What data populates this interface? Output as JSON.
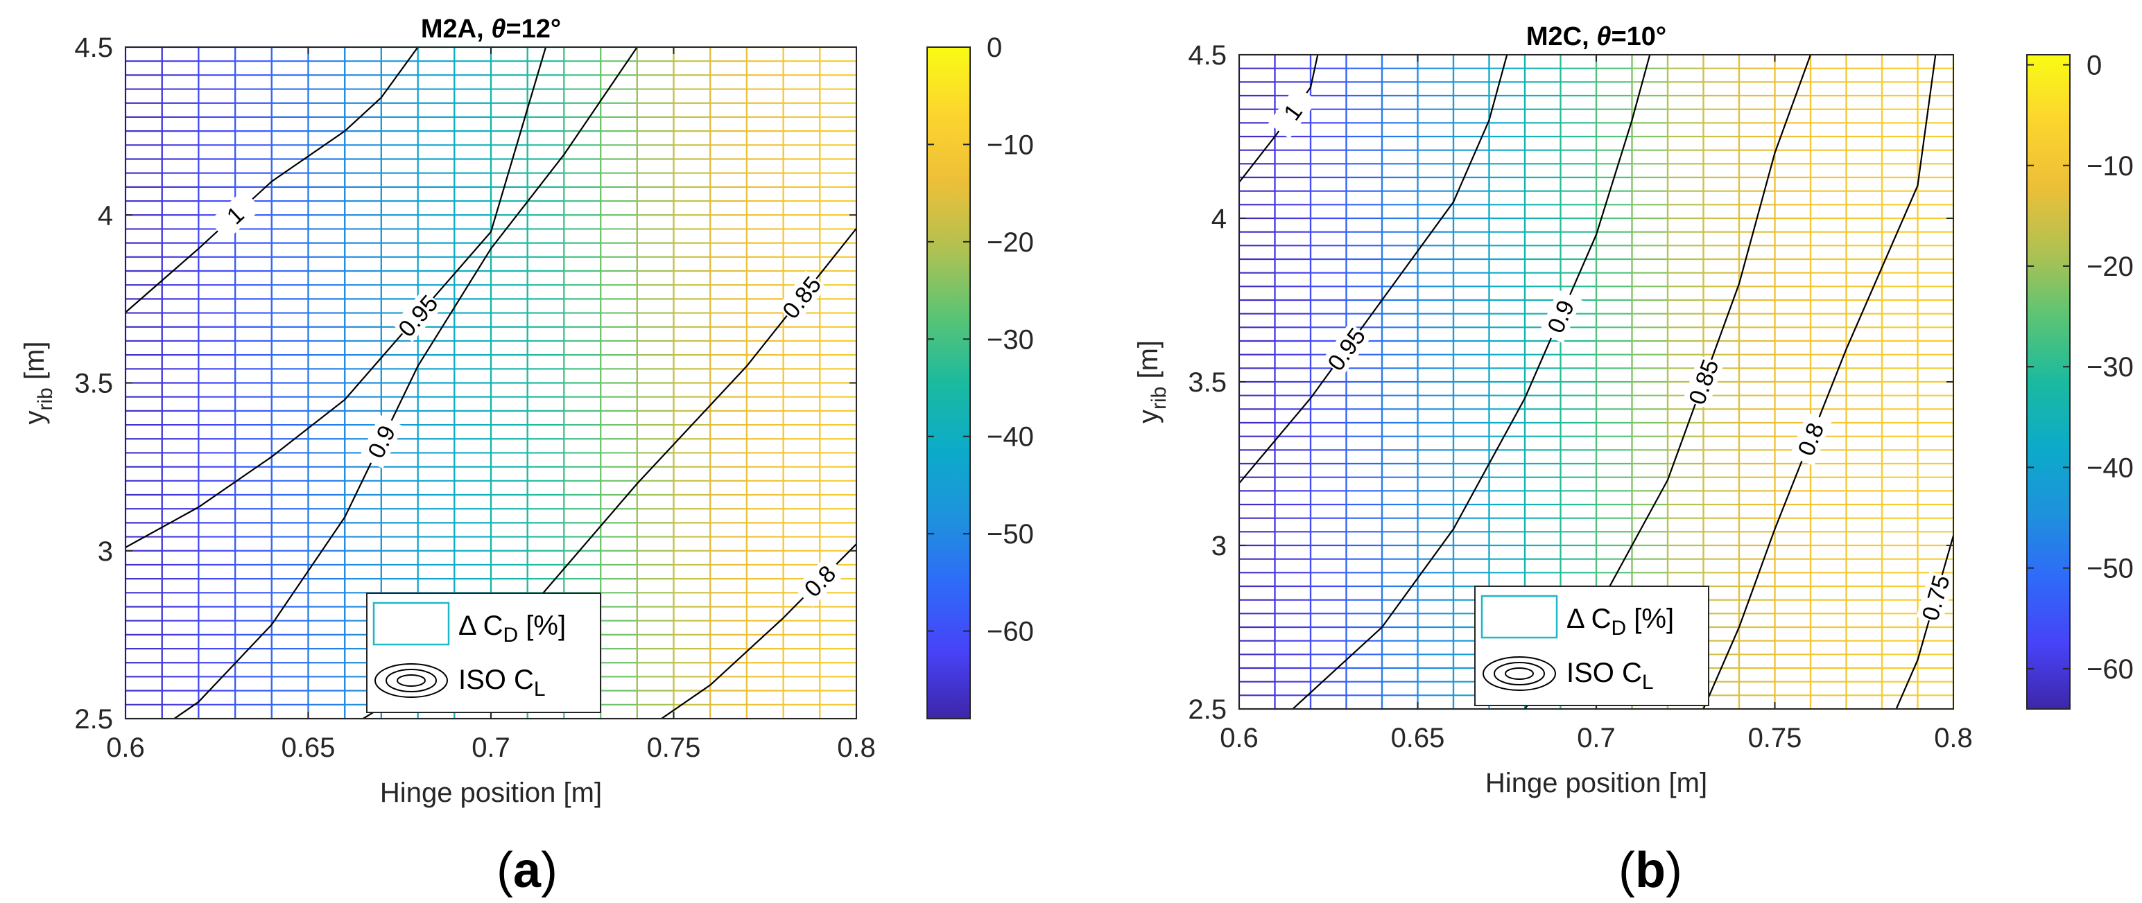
{
  "colormap": [
    "#3e26a8",
    "#4743f8",
    "#2f6af9",
    "#1e92dc",
    "#0cabc9",
    "#1bba9f",
    "#5bc474",
    "#b1c151",
    "#edbf38",
    "#fcd52e",
    "#f9fb15"
  ],
  "chart_data": [
    {
      "type": "heatmap",
      "panel_label": "(a)",
      "title": "M2A, θ=12°",
      "title_prefix": "M2A, ",
      "title_theta": "θ",
      "title_suffix": "=12°",
      "xlabel": "Hinge position [m]",
      "ylabel": "y",
      "ylabel_sub": "rib",
      "ylabel_unit": " [m]",
      "xlim": [
        0.6,
        0.8
      ],
      "ylim": [
        2.5,
        4.5
      ],
      "xticks": [
        "0.6",
        "0.65",
        "0.7",
        "0.75",
        "0.8"
      ],
      "yticks": [
        "2.5",
        "3",
        "3.5",
        "4",
        "4.5"
      ],
      "grid": false,
      "filled_series": {
        "name": "Δ C_D [%]",
        "x": [
          0.6,
          0.61,
          0.62,
          0.63,
          0.64,
          0.65,
          0.66,
          0.67,
          0.68,
          0.69,
          0.7,
          0.71,
          0.72,
          0.73,
          0.74,
          0.75,
          0.76,
          0.77,
          0.78,
          0.79,
          0.8
        ],
        "values": [
          -66,
          -64,
          -61,
          -58,
          -55,
          -52,
          -49,
          -46,
          -43,
          -40,
          -37,
          -34,
          -30,
          -26,
          -22,
          -18,
          -15,
          -13,
          -11,
          -10,
          -9
        ],
        "clim": [
          -69,
          0
        ],
        "colorbar_ticks": [
          "0",
          "-10",
          "-20",
          "-30",
          "-40",
          "-50",
          "-60"
        ]
      },
      "contour_series": {
        "name": "ISO C_L",
        "lines": [
          {
            "label": "1",
            "points": [
              [
                0.6,
                3.71
              ],
              [
                0.62,
                3.9
              ],
              [
                0.64,
                4.1
              ],
              [
                0.66,
                4.25
              ],
              [
                0.67,
                4.35
              ],
              [
                0.68,
                4.5
              ]
            ]
          },
          {
            "label": "0.95",
            "points": [
              [
                0.6,
                3.01
              ],
              [
                0.62,
                3.13
              ],
              [
                0.64,
                3.28
              ],
              [
                0.66,
                3.45
              ],
              [
                0.7,
                3.95
              ],
              [
                0.715,
                4.5
              ]
            ]
          },
          {
            "label": "0.9",
            "points": [
              [
                0.6,
                2.4
              ],
              [
                0.62,
                2.55
              ],
              [
                0.64,
                2.78
              ],
              [
                0.66,
                3.1
              ],
              [
                0.68,
                3.55
              ],
              [
                0.7,
                3.9
              ],
              [
                0.72,
                4.18
              ],
              [
                0.74,
                4.5
              ]
            ]
          },
          {
            "label": "0.85",
            "points": [
              [
                0.65,
                2.4
              ],
              [
                0.68,
                2.6
              ],
              [
                0.71,
                2.82
              ],
              [
                0.74,
                3.2
              ],
              [
                0.77,
                3.55
              ],
              [
                0.8,
                3.96
              ]
            ]
          },
          {
            "label": "0.8",
            "points": [
              [
                0.74,
                2.45
              ],
              [
                0.76,
                2.6
              ],
              [
                0.78,
                2.8
              ],
              [
                0.8,
                3.02
              ]
            ]
          }
        ]
      },
      "legend": {
        "placement": "bottom-center",
        "items": [
          "Δ C_D [%]",
          "ISO C_L"
        ]
      }
    },
    {
      "type": "heatmap",
      "panel_label": "(b)",
      "title": "M2C, θ=10°",
      "title_prefix": "M2C, ",
      "title_theta": "θ",
      "title_suffix": "=10°",
      "xlabel": "Hinge position [m]",
      "ylabel": "y",
      "ylabel_sub": "rib",
      "ylabel_unit": " [m]",
      "xlim": [
        0.6,
        0.8
      ],
      "ylim": [
        2.5,
        4.5
      ],
      "xticks": [
        "0.6",
        "0.65",
        "0.7",
        "0.75",
        "0.8"
      ],
      "yticks": [
        "2.5",
        "3",
        "3.5",
        "4",
        "4.5"
      ],
      "grid": false,
      "filled_series": {
        "name": "Δ C_D [%]",
        "x": [
          0.6,
          0.61,
          0.62,
          0.63,
          0.64,
          0.65,
          0.66,
          0.67,
          0.68,
          0.69,
          0.7,
          0.71,
          0.72,
          0.73,
          0.74,
          0.75,
          0.76,
          0.77,
          0.78,
          0.79,
          0.8
        ],
        "values": [
          -62,
          -59,
          -56,
          -52,
          -48,
          -45,
          -42,
          -38,
          -34,
          -30,
          -26,
          -22,
          -18,
          -15,
          -13,
          -11,
          -10,
          -9,
          -8,
          -8,
          -8
        ],
        "clim": [
          -64,
          1
        ],
        "colorbar_ticks": [
          "0",
          "-10",
          "-20",
          "-30",
          "-40",
          "-50",
          "-60"
        ]
      },
      "contour_series": {
        "name": "ISO C_L",
        "lines": [
          {
            "label": "1",
            "points": [
              [
                0.6,
                4.11
              ],
              [
                0.61,
                4.25
              ],
              [
                0.62,
                4.4
              ],
              [
                0.622,
                4.5
              ]
            ]
          },
          {
            "label": "0.95",
            "points": [
              [
                0.6,
                3.19
              ],
              [
                0.62,
                3.45
              ],
              [
                0.64,
                3.75
              ],
              [
                0.66,
                4.05
              ],
              [
                0.67,
                4.3
              ],
              [
                0.675,
                4.5
              ]
            ]
          },
          {
            "label": "0.9",
            "points": [
              [
                0.615,
                2.5
              ],
              [
                0.64,
                2.75
              ],
              [
                0.66,
                3.05
              ],
              [
                0.68,
                3.45
              ],
              [
                0.7,
                3.95
              ],
              [
                0.71,
                4.3
              ],
              [
                0.715,
                4.5
              ]
            ]
          },
          {
            "label": "0.85",
            "points": [
              [
                0.68,
                2.5
              ],
              [
                0.7,
                2.8
              ],
              [
                0.72,
                3.2
              ],
              [
                0.74,
                3.8
              ],
              [
                0.75,
                4.2
              ],
              [
                0.76,
                4.5
              ]
            ]
          },
          {
            "label": "0.8",
            "points": [
              [
                0.73,
                2.5
              ],
              [
                0.74,
                2.75
              ],
              [
                0.75,
                3.05
              ],
              [
                0.77,
                3.6
              ],
              [
                0.79,
                4.1
              ],
              [
                0.795,
                4.5
              ]
            ]
          },
          {
            "label": "0.75",
            "points": [
              [
                0.784,
                2.5
              ],
              [
                0.79,
                2.65
              ],
              [
                0.8,
                3.03
              ]
            ]
          }
        ]
      },
      "legend": {
        "placement": "bottom-center",
        "items": [
          "Δ C_D [%]",
          "ISO C_L"
        ]
      }
    }
  ]
}
